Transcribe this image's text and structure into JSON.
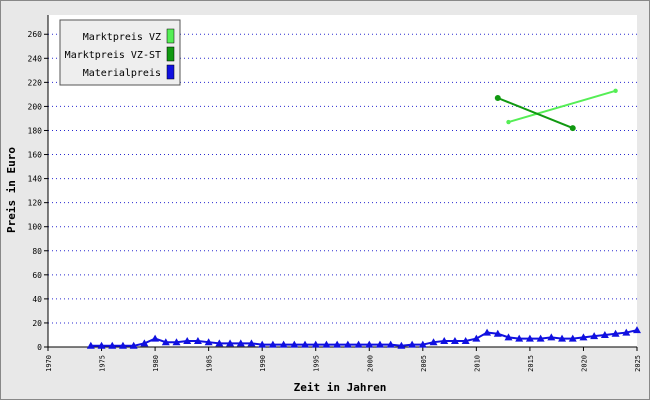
{
  "chart_data": {
    "type": "line",
    "x_label": "Zeit in Jahren",
    "y_label": "Preis in Euro",
    "xlim": [
      1970,
      2025
    ],
    "ylim": [
      0,
      276
    ],
    "xticks": [
      1970,
      1975,
      1980,
      1985,
      1990,
      1995,
      2000,
      2005,
      2010,
      2015,
      2020,
      2025
    ],
    "yticks": [
      0,
      20,
      40,
      60,
      80,
      100,
      120,
      140,
      160,
      180,
      200,
      220,
      240,
      260
    ],
    "grid": true,
    "legend": "upper left",
    "series": [
      {
        "name": "Marktpreis VZ",
        "color": "#55ee55",
        "x": [
          2013,
          2023
        ],
        "values": [
          187,
          213
        ]
      },
      {
        "name": "Marktpreis VZ-ST",
        "color": "#119911",
        "x": [
          2012,
          2019
        ],
        "values": [
          207,
          182
        ]
      },
      {
        "name": "Materialpreis",
        "color": "#1010e0",
        "x": [
          1974,
          1975,
          1976,
          1977,
          1978,
          1979,
          1980,
          1981,
          1982,
          1983,
          1984,
          1985,
          1986,
          1987,
          1988,
          1989,
          1990,
          1991,
          1992,
          1993,
          1994,
          1995,
          1996,
          1997,
          1998,
          1999,
          2000,
          2001,
          2002,
          2003,
          2004,
          2005,
          2006,
          2007,
          2008,
          2009,
          2010,
          2011,
          2012,
          2013,
          2014,
          2015,
          2016,
          2017,
          2018,
          2019,
          2020,
          2021,
          2022,
          2023,
          2024,
          2025
        ],
        "values": [
          1,
          1,
          1,
          1,
          1,
          3,
          7,
          4,
          4,
          5,
          5,
          4,
          3,
          3,
          3,
          3,
          2,
          2,
          2,
          2,
          2,
          2,
          2,
          2,
          2,
          2,
          2,
          2,
          2,
          1,
          2,
          2,
          4,
          5,
          5,
          5,
          7,
          12,
          11,
          8,
          7,
          7,
          7,
          8,
          7,
          7,
          8,
          9,
          10,
          11,
          12,
          14
        ]
      }
    ]
  }
}
